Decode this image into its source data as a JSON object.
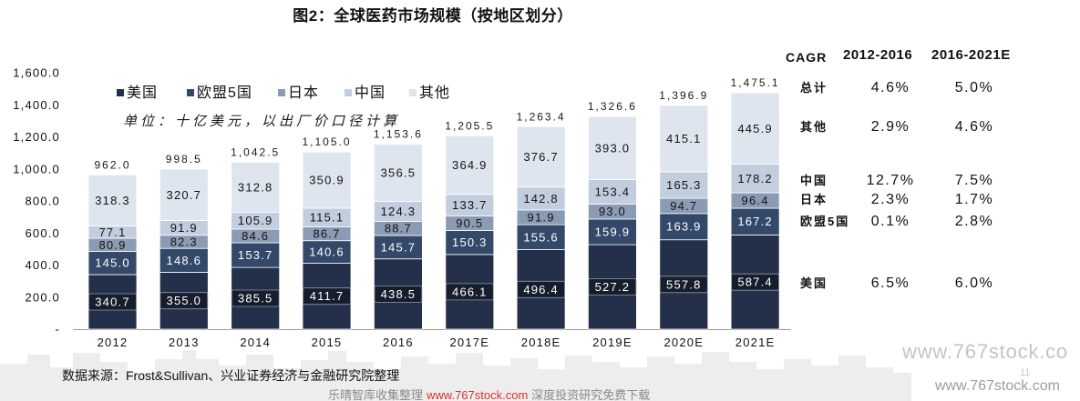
{
  "title": "图2：全球医药市场规模（按地区划分）",
  "chart_data": {
    "type": "bar",
    "stacked": true,
    "categories": [
      "2012",
      "2013",
      "2014",
      "2015",
      "2016",
      "2017E",
      "2018E",
      "2019E",
      "2020E",
      "2021E"
    ],
    "series": [
      {
        "name": "美国",
        "color": "#243049",
        "label_color": "#ffffff",
        "values": [
          340.7,
          355.0,
          385.5,
          411.7,
          438.5,
          466.1,
          496.4,
          527.2,
          557.8,
          587.4
        ],
        "labels": [
          "340.7",
          "355.0",
          "385.5",
          "411.7",
          "438.5",
          "466.1",
          "496.4",
          "527.2",
          "557.8",
          "587.4"
        ]
      },
      {
        "name": "欧盟5国",
        "color": "#34496a",
        "label_color": "#ffffff",
        "values": [
          145.0,
          148.6,
          153.7,
          140.6,
          145.7,
          150.3,
          155.6,
          159.9,
          163.9,
          167.2
        ],
        "labels": [
          "145.0",
          "148.6",
          "153.7",
          "140.6",
          "145.7",
          "150.3",
          "155.6",
          "159.9",
          "163.9",
          "167.2"
        ]
      },
      {
        "name": "日本",
        "color": "#8a9bb3",
        "label_color": "#141414",
        "values": [
          80.9,
          82.3,
          84.6,
          86.7,
          88.7,
          90.5,
          91.9,
          93.0,
          94.7,
          96.4
        ],
        "labels": [
          "80.9",
          "82.3",
          "84.6",
          "86.7",
          "88.7",
          "90.5",
          "91.9",
          "93.0",
          "94.7",
          "96.4"
        ]
      },
      {
        "name": "中国",
        "color": "#c2cddd",
        "label_color": "#141414",
        "values": [
          77.1,
          91.9,
          105.9,
          115.1,
          124.3,
          133.7,
          142.8,
          153.4,
          165.3,
          178.2
        ],
        "labels": [
          "77.1",
          "91.9",
          "105.9",
          "115.1",
          "124.3",
          "133.7",
          "142.8",
          "153.4",
          "165.3",
          "178.2"
        ]
      },
      {
        "name": "其他",
        "color": "#dfe5ee",
        "label_color": "#141414",
        "values": [
          318.3,
          320.7,
          312.8,
          350.9,
          356.5,
          364.9,
          376.7,
          393.0,
          415.1,
          445.9
        ],
        "labels": [
          "318.3",
          "320.7",
          "312.8",
          "350.9",
          "356.5",
          "364.9",
          "376.7",
          "393.0",
          "415.1",
          "445.9"
        ]
      }
    ],
    "total_labels": [
      "962.0",
      "998.5",
      "1,042.5",
      "1,105.0",
      "1,153.6",
      "1,205.5",
      "1,263.4",
      "1,326.6",
      "1,396.9",
      "1,475.1"
    ],
    "ylim": [
      0,
      1600
    ],
    "yticks": [
      0,
      200,
      400,
      600,
      800,
      1000,
      1200,
      1400,
      1600
    ],
    "ytick_labels": [
      "-",
      "200.0",
      "400.0",
      "600.0",
      "800.0",
      "1,000.0",
      "1,200.0",
      "1,400.0",
      "1,600.0"
    ],
    "annotation": "单位：十亿美元，以出厂价口径计算",
    "legend_position": "top-left",
    "grid": false
  },
  "cagr_table": {
    "header": [
      "CAGR",
      "2012-2016",
      "2016-2021E"
    ],
    "rows": [
      {
        "label": "总计",
        "cagr_2012_2016": "4.6%",
        "cagr_2016_2021e": "5.0%"
      },
      {
        "label": "其他",
        "cagr_2012_2016": "2.9%",
        "cagr_2016_2021e": "4.6%"
      },
      {
        "label": "中国",
        "cagr_2012_2016": "12.7%",
        "cagr_2016_2021e": "7.5%"
      },
      {
        "label": "日本",
        "cagr_2012_2016": "2.3%",
        "cagr_2016_2021e": "1.7%"
      },
      {
        "label": "欧盟5国",
        "cagr_2012_2016": "0.1%",
        "cagr_2016_2021e": "2.8%"
      },
      {
        "label": "美国",
        "cagr_2012_2016": "6.5%",
        "cagr_2016_2021e": "6.0%"
      }
    ]
  },
  "source": "数据来源：Frost&Sullivan、兴业证券经济与金融研究院整理",
  "watermark": {
    "site_large": "www.767stock.co",
    "site_small": "www.767stock.com",
    "page_number": "11",
    "footer_left": "乐晴智库收集整理",
    "footer_url": "www.767stock.com",
    "footer_right": "深度投资研究免费下载"
  }
}
